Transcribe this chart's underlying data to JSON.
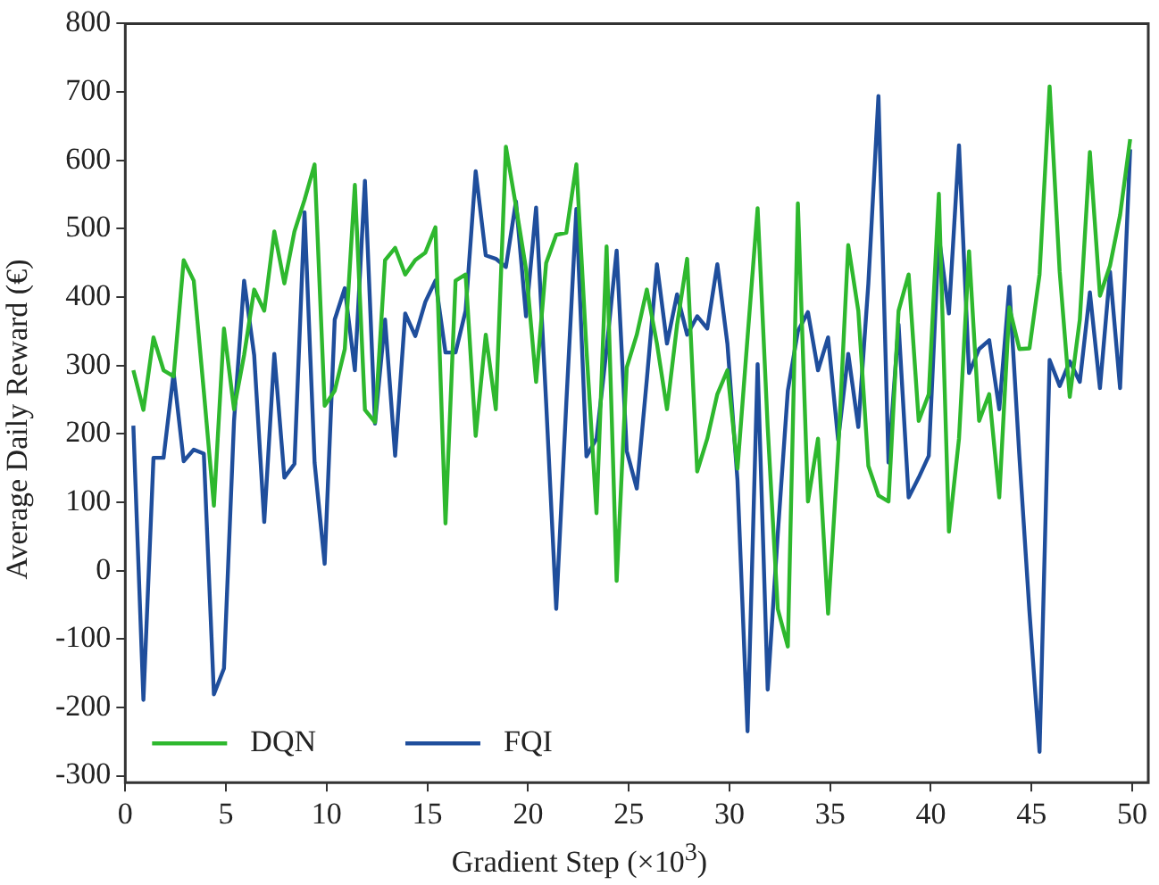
{
  "chart_data": {
    "type": "line",
    "xlabel": "Gradient Step (×10$^{3}$)",
    "ylabel": "Average Daily Reward (€)",
    "x": [
      0.4,
      0.9,
      1.4,
      1.9,
      2.4,
      2.9,
      3.4,
      3.9,
      4.4,
      4.9,
      5.4,
      5.9,
      6.4,
      6.9,
      7.4,
      7.9,
      8.4,
      8.9,
      9.4,
      9.9,
      10.4,
      10.9,
      11.4,
      11.9,
      12.4,
      12.9,
      13.4,
      13.9,
      14.4,
      14.9,
      15.4,
      15.9,
      16.4,
      16.9,
      17.4,
      17.9,
      18.4,
      18.9,
      19.4,
      19.9,
      20.4,
      20.9,
      21.4,
      21.9,
      22.4,
      22.9,
      23.4,
      23.9,
      24.4,
      24.9,
      25.4,
      25.9,
      26.4,
      26.9,
      27.4,
      27.9,
      28.4,
      28.9,
      29.4,
      29.9,
      30.4,
      30.9,
      31.4,
      31.9,
      32.4,
      32.9,
      33.4,
      33.9,
      34.4,
      34.9,
      35.4,
      35.9,
      36.4,
      36.9,
      37.4,
      37.9,
      38.4,
      38.9,
      39.4,
      39.9,
      40.4,
      40.9,
      41.4,
      41.9,
      42.4,
      42.9,
      43.4,
      43.9,
      44.4,
      44.9,
      45.4,
      45.9,
      46.4,
      46.9,
      47.4,
      47.9,
      48.4,
      48.9,
      49.4,
      49.9
    ],
    "series": [
      {
        "name": "DQN",
        "color": "#2eb82e",
        "values": [
          293,
          235,
          341,
          293,
          284,
          454,
          424,
          262,
          95,
          354,
          236,
          315,
          411,
          380,
          496,
          420,
          496,
          542,
          594,
          241,
          263,
          324,
          564,
          235,
          217,
          454,
          472,
          433,
          454,
          465,
          502,
          69,
          424,
          433,
          197,
          345,
          236,
          620,
          533,
          441,
          276,
          450,
          491,
          494,
          594,
          324,
          84,
          474,
          -15,
          297,
          345,
          411,
          332,
          236,
          359,
          456,
          145,
          193,
          258,
          293,
          149,
          341,
          530,
          210,
          -56,
          -111,
          537,
          101,
          193,
          -63,
          175,
          476,
          380,
          153,
          110,
          101,
          380,
          433,
          219,
          258,
          551,
          57,
          193,
          467,
          219,
          258,
          107,
          385,
          324,
          325,
          433,
          708,
          437,
          254,
          367,
          612,
          402,
          446,
          520,
          631
        ]
      },
      {
        "name": "FQI",
        "color": "#1f4e9c",
        "values": [
          212,
          -189,
          165,
          165,
          289,
          160,
          177,
          171,
          -181,
          -143,
          219,
          424,
          315,
          71,
          317,
          136,
          156,
          524,
          158,
          10,
          367,
          413,
          293,
          570,
          215,
          367,
          168,
          376,
          343,
          393,
          424,
          319,
          319,
          380,
          584,
          461,
          456,
          444,
          540,
          372,
          531,
          245,
          -56,
          245,
          529,
          167,
          193,
          324,
          468,
          175,
          120,
          280,
          448,
          332,
          404,
          345,
          372,
          354,
          448,
          332,
          132,
          -235,
          302,
          -174,
          53,
          263,
          350,
          378,
          293,
          341,
          191,
          317,
          210,
          420,
          694,
          158,
          360,
          107,
          136,
          168,
          489,
          376,
          622,
          289,
          324,
          337,
          236,
          415,
          167,
          -60,
          -265,
          308,
          270,
          306,
          276,
          407,
          267,
          437,
          267,
          616
        ]
      }
    ],
    "xlim": [
      0,
      50.8
    ],
    "xticks": [
      0,
      5,
      10,
      15,
      20,
      25,
      30,
      35,
      40,
      45,
      50
    ],
    "ylim": [
      -310,
      800
    ],
    "yticks": [
      -300,
      -200,
      -100,
      0,
      100,
      200,
      300,
      400,
      500,
      600,
      700,
      800
    ],
    "grid": false,
    "legend": "bottom left",
    "marker": "none",
    "line_style": "solid"
  }
}
